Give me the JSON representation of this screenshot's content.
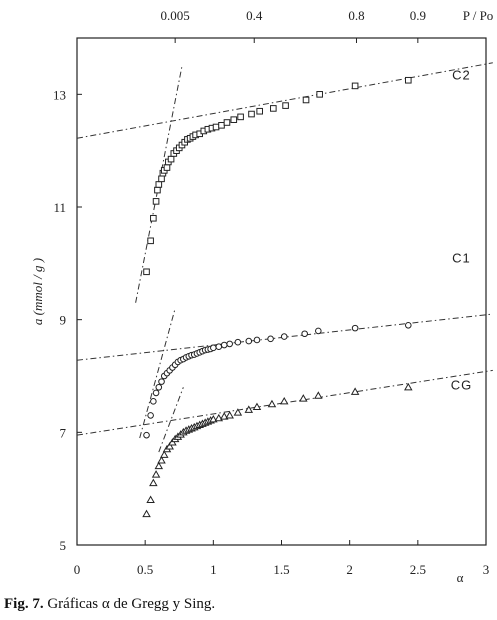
{
  "caption": {
    "label": "Fig. 7.",
    "text": "Gráficas α de Gregg y Sing."
  },
  "chart_data": {
    "type": "scatter",
    "xlabel": "α",
    "ylabel": "a (mmol / g )",
    "xlim": [
      0,
      3
    ],
    "ylim": [
      5,
      14
    ],
    "xticks": [
      "0",
      "0.5",
      "1",
      "1.5",
      "2",
      "2.5",
      "3"
    ],
    "xtick_values": [
      0,
      0.5,
      1,
      1.5,
      2,
      2.5,
      3
    ],
    "yticks": [
      "5",
      "7",
      "9",
      "11",
      "13"
    ],
    "ytick_values": [
      5,
      7,
      9,
      11,
      13
    ],
    "top_axis_label": "P / Po",
    "top_ticks": [
      {
        "label": "0.005",
        "x": 0.72
      },
      {
        "label": "0.4",
        "x": 1.3
      },
      {
        "label": "0.8",
        "x": 2.05
      },
      {
        "label": "0.9",
        "x": 2.5
      }
    ],
    "grid": false,
    "series": [
      {
        "name": "C2",
        "marker": "square",
        "label_at": [
          2.82,
          13.35
        ],
        "x": [
          0.51,
          0.54,
          0.56,
          0.58,
          0.59,
          0.6,
          0.62,
          0.63,
          0.64,
          0.66,
          0.67,
          0.69,
          0.71,
          0.73,
          0.75,
          0.77,
          0.79,
          0.81,
          0.83,
          0.85,
          0.87,
          0.9,
          0.93,
          0.96,
          0.99,
          1.02,
          1.06,
          1.1,
          1.15,
          1.2,
          1.28,
          1.34,
          1.44,
          1.53,
          1.68,
          1.78,
          2.04,
          2.43
        ],
        "y": [
          9.85,
          10.4,
          10.8,
          11.1,
          11.3,
          11.4,
          11.5,
          11.6,
          11.65,
          11.7,
          11.8,
          11.85,
          11.95,
          12.0,
          12.05,
          12.1,
          12.15,
          12.2,
          12.22,
          12.25,
          12.28,
          12.3,
          12.35,
          12.38,
          12.4,
          12.42,
          12.45,
          12.5,
          12.55,
          12.6,
          12.65,
          12.7,
          12.75,
          12.8,
          12.9,
          13.0,
          13.15,
          13.25
        ]
      },
      {
        "name": "C1",
        "marker": "circle",
        "label_at": [
          2.82,
          10.1
        ],
        "x": [
          0.51,
          0.54,
          0.56,
          0.58,
          0.6,
          0.62,
          0.64,
          0.66,
          0.68,
          0.7,
          0.72,
          0.74,
          0.76,
          0.78,
          0.8,
          0.82,
          0.84,
          0.86,
          0.88,
          0.9,
          0.92,
          0.94,
          0.96,
          0.98,
          1.0,
          1.04,
          1.08,
          1.12,
          1.18,
          1.26,
          1.32,
          1.42,
          1.52,
          1.67,
          1.77,
          2.04,
          2.43
        ],
        "y": [
          6.95,
          7.3,
          7.55,
          7.7,
          7.8,
          7.9,
          8.0,
          8.05,
          8.1,
          8.15,
          8.2,
          8.25,
          8.28,
          8.3,
          8.33,
          8.35,
          8.37,
          8.38,
          8.4,
          8.42,
          8.44,
          8.46,
          8.47,
          8.48,
          8.5,
          8.52,
          8.55,
          8.57,
          8.6,
          8.62,
          8.64,
          8.66,
          8.7,
          8.75,
          8.8,
          8.85,
          8.9
        ]
      },
      {
        "name": "CG",
        "marker": "triangle",
        "label_at": [
          2.82,
          7.85
        ],
        "x": [
          0.51,
          0.54,
          0.56,
          0.58,
          0.6,
          0.62,
          0.64,
          0.66,
          0.68,
          0.7,
          0.72,
          0.74,
          0.76,
          0.78,
          0.8,
          0.82,
          0.84,
          0.86,
          0.88,
          0.9,
          0.92,
          0.94,
          0.96,
          0.98,
          1.0,
          1.04,
          1.08,
          1.12,
          1.18,
          1.26,
          1.32,
          1.43,
          1.52,
          1.66,
          1.77,
          2.04,
          2.43
        ],
        "y": [
          5.55,
          5.8,
          6.1,
          6.25,
          6.4,
          6.5,
          6.6,
          6.7,
          6.75,
          6.82,
          6.88,
          6.92,
          6.96,
          7.0,
          7.03,
          7.05,
          7.07,
          7.09,
          7.11,
          7.13,
          7.15,
          7.17,
          7.19,
          7.21,
          7.23,
          7.25,
          7.28,
          7.3,
          7.35,
          7.4,
          7.45,
          7.5,
          7.55,
          7.6,
          7.65,
          7.72,
          7.8
        ]
      }
    ],
    "fit_lines": [
      {
        "x": [
          0,
          3.05
        ],
        "y": [
          12.22,
          13.56
        ]
      },
      {
        "x": [
          0.43,
          0.77
        ],
        "y": [
          9.3,
          13.5
        ]
      },
      {
        "x": [
          0,
          3.05
        ],
        "y": [
          8.28,
          9.1
        ]
      },
      {
        "x": [
          0.46,
          0.72
        ],
        "y": [
          6.9,
          9.2
        ]
      },
      {
        "x": [
          0,
          3.05
        ],
        "y": [
          6.95,
          8.1
        ]
      },
      {
        "x": [
          0.6,
          0.78
        ],
        "y": [
          6.65,
          7.8
        ]
      }
    ]
  }
}
